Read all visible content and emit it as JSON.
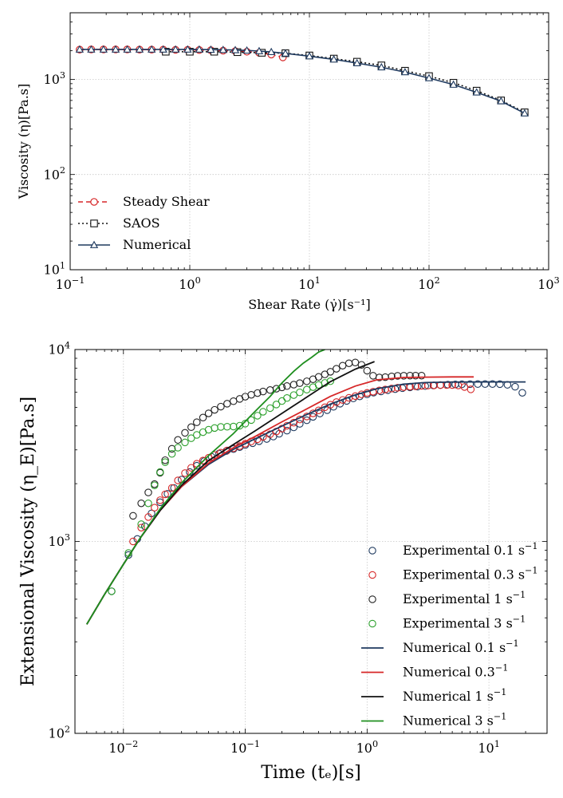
{
  "chart_data": [
    {
      "type": "line",
      "xscale": "log",
      "yscale": "log",
      "xlabel": "Shear Rate (γ̇)[s⁻¹]",
      "ylabel": "Viscosity (η)[Pa.s]",
      "xlim": [
        0.1,
        1000
      ],
      "ylim": [
        10,
        5000
      ],
      "xticks": [
        {
          "v": 0.1,
          "b": "10",
          "e": "−1"
        },
        {
          "v": 1,
          "b": "10",
          "e": "0"
        },
        {
          "v": 10,
          "b": "10",
          "e": "1"
        },
        {
          "v": 100,
          "b": "10",
          "e": "2"
        },
        {
          "v": 1000,
          "b": "10",
          "e": "3"
        }
      ],
      "yticks": [
        {
          "v": 10,
          "b": "10",
          "e": "1"
        },
        {
          "v": 100,
          "b": "10",
          "e": "2"
        },
        {
          "v": 1000,
          "b": "10",
          "e": "3"
        }
      ],
      "legend_position": "lower-left",
      "series": [
        {
          "name": "Steady Shear",
          "color": "#d62728",
          "dash": "6,4",
          "marker": "circle",
          "x": [
            0.12,
            0.15,
            0.19,
            0.24,
            0.3,
            0.38,
            0.48,
            0.6,
            0.76,
            0.96,
            1.2,
            1.5,
            1.9,
            2.4,
            3.0,
            3.8,
            4.8,
            6.0
          ],
          "y": [
            2050,
            2060,
            2060,
            2060,
            2060,
            2050,
            2050,
            2050,
            2040,
            2040,
            2030,
            2020,
            2000,
            1980,
            1950,
            1900,
            1820,
            1700
          ]
        },
        {
          "name": "SAOS",
          "color": "#111111",
          "dash": "2,3",
          "marker": "square",
          "x": [
            0.63,
            1.0,
            1.6,
            2.5,
            4.0,
            6.3,
            10,
            16,
            25,
            40,
            63,
            100,
            160,
            250,
            400,
            630
          ],
          "y": [
            1950,
            1950,
            1950,
            1930,
            1900,
            1880,
            1780,
            1650,
            1530,
            1400,
            1230,
            1080,
            920,
            760,
            600,
            450
          ]
        },
        {
          "name": "Numerical",
          "color": "#1f3a5f",
          "dash": "",
          "marker": "triangle",
          "x": [
            0.12,
            0.15,
            0.19,
            0.24,
            0.3,
            0.38,
            0.48,
            0.6,
            0.76,
            0.96,
            1.2,
            1.5,
            1.9,
            2.4,
            3.0,
            3.8,
            4.8,
            6.3,
            10,
            16,
            25,
            40,
            63,
            100,
            160,
            250,
            400,
            630
          ],
          "y": [
            2060,
            2060,
            2060,
            2060,
            2060,
            2060,
            2060,
            2060,
            2060,
            2060,
            2060,
            2050,
            2040,
            2030,
            2010,
            1980,
            1940,
            1870,
            1750,
            1620,
            1480,
            1340,
            1190,
            1030,
            880,
            730,
            590,
            440
          ]
        }
      ]
    },
    {
      "type": "scatter",
      "xscale": "log",
      "yscale": "log",
      "xlabel": "Time (tₑ)[s]",
      "ylabel": "Extensional Viscosity (η_E)[Pa.s]",
      "xlim": [
        0.004,
        30
      ],
      "ylim": [
        100,
        10000
      ],
      "xticks": [
        {
          "v": 0.01,
          "b": "10",
          "e": "−2"
        },
        {
          "v": 0.1,
          "b": "10",
          "e": "−1"
        },
        {
          "v": 1,
          "b": "10",
          "e": "0"
        },
        {
          "v": 10,
          "b": "10",
          "e": "1"
        }
      ],
      "yticks": [
        {
          "v": 100,
          "b": "10",
          "e": "2"
        },
        {
          "v": 1000,
          "b": "10",
          "e": "3"
        },
        {
          "v": 10000,
          "b": "10",
          "e": "4"
        }
      ],
      "legend_position": "lower-right",
      "series": [
        {
          "name": "Experimental 0.1",
          "sup": "−1",
          "unit": "s",
          "color": "#1f3a5f",
          "kind": "scatter",
          "x": [
            0.008,
            0.011,
            0.013,
            0.015,
            0.017,
            0.02,
            0.023,
            0.026,
            0.03,
            0.035,
            0.04,
            0.046,
            0.053,
            0.061,
            0.07,
            0.08,
            0.09,
            0.1,
            0.115,
            0.13,
            0.15,
            0.17,
            0.19,
            0.22,
            0.25,
            0.28,
            0.32,
            0.36,
            0.41,
            0.47,
            0.53,
            0.6,
            0.68,
            0.77,
            0.87,
            1.0,
            1.13,
            1.3,
            1.48,
            1.7,
            1.95,
            2.25,
            2.6,
            3.0,
            3.5,
            4.0,
            4.6,
            5.3,
            6.0,
            7.0,
            8.1,
            9.3,
            10.7,
            12.3,
            14.2,
            16.4,
            18.8
          ],
          "y": [
            550,
            850,
            1030,
            1200,
            1400,
            1600,
            1770,
            1900,
            2100,
            2300,
            2480,
            2620,
            2760,
            2870,
            2960,
            3030,
            3100,
            3180,
            3250,
            3330,
            3420,
            3520,
            3640,
            3780,
            3930,
            4100,
            4280,
            4460,
            4640,
            4830,
            5030,
            5220,
            5400,
            5560,
            5700,
            5840,
            5960,
            6050,
            6140,
            6220,
            6290,
            6350,
            6410,
            6450,
            6500,
            6530,
            6560,
            6580,
            6590,
            6600,
            6610,
            6610,
            6610,
            6600,
            6550,
            6400,
            5950
          ]
        },
        {
          "name": "Experimental 0.3",
          "sup": "−1",
          "unit": "s",
          "color": "#d62728",
          "kind": "scatter",
          "x": [
            0.012,
            0.014,
            0.016,
            0.018,
            0.02,
            0.022,
            0.025,
            0.028,
            0.032,
            0.036,
            0.04,
            0.045,
            0.05,
            0.056,
            0.063,
            0.071,
            0.08,
            0.09,
            0.1,
            0.112,
            0.126,
            0.14,
            0.16,
            0.18,
            0.2,
            0.22,
            0.25,
            0.28,
            0.32,
            0.36,
            0.4,
            0.45,
            0.5,
            0.56,
            0.63,
            0.71,
            0.8,
            0.9,
            1.0,
            1.12,
            1.26,
            1.41,
            1.59,
            1.78,
            2.0,
            2.25,
            2.5,
            2.8,
            3.16,
            3.55,
            4.0,
            4.5,
            5.0,
            5.6,
            6.3,
            7.1
          ],
          "y": [
            1000,
            1180,
            1340,
            1500,
            1640,
            1760,
            1900,
            2080,
            2270,
            2420,
            2540,
            2640,
            2730,
            2820,
            2900,
            2980,
            3060,
            3140,
            3230,
            3320,
            3410,
            3510,
            3620,
            3740,
            3870,
            4010,
            4160,
            4320,
            4480,
            4650,
            4820,
            5000,
            5160,
            5320,
            5460,
            5600,
            5720,
            5840,
            5940,
            6030,
            6120,
            6190,
            6260,
            6320,
            6370,
            6410,
            6440,
            6470,
            6490,
            6510,
            6520,
            6530,
            6530,
            6500,
            6380,
            6200
          ]
        },
        {
          "name": "Experimental 1",
          "sup": "−1",
          "unit": "s",
          "color": "#222222",
          "kind": "scatter",
          "x": [
            0.012,
            0.014,
            0.016,
            0.018,
            0.02,
            0.022,
            0.025,
            0.028,
            0.032,
            0.036,
            0.04,
            0.045,
            0.05,
            0.056,
            0.063,
            0.071,
            0.08,
            0.09,
            0.1,
            0.112,
            0.126,
            0.14,
            0.16,
            0.18,
            0.2,
            0.22,
            0.25,
            0.28,
            0.32,
            0.36,
            0.4,
            0.45,
            0.5,
            0.56,
            0.63,
            0.71,
            0.8,
            0.9,
            1.0,
            1.12,
            1.26,
            1.41,
            1.59,
            1.78,
            2.0,
            2.25,
            2.5,
            2.8
          ],
          "y": [
            1360,
            1580,
            1800,
            1990,
            2280,
            2650,
            3040,
            3380,
            3680,
            3940,
            4180,
            4420,
            4650,
            4850,
            5040,
            5220,
            5380,
            5530,
            5680,
            5810,
            5930,
            6040,
            6150,
            6250,
            6350,
            6450,
            6560,
            6680,
            6830,
            7000,
            7200,
            7420,
            7660,
            7940,
            8240,
            8480,
            8560,
            8320,
            7760,
            7300,
            7150,
            7180,
            7240,
            7290,
            7300,
            7310,
            7310,
            7310
          ]
        },
        {
          "name": "Experimental 3",
          "sup": "−1",
          "unit": "s",
          "color": "#2ca02c",
          "kind": "scatter",
          "x": [
            0.008,
            0.011,
            0.014,
            0.016,
            0.018,
            0.02,
            0.022,
            0.025,
            0.028,
            0.032,
            0.036,
            0.04,
            0.045,
            0.05,
            0.056,
            0.063,
            0.071,
            0.08,
            0.09,
            0.1,
            0.112,
            0.126,
            0.14,
            0.16,
            0.18,
            0.2,
            0.22,
            0.25,
            0.28,
            0.32,
            0.36,
            0.4,
            0.45,
            0.5
          ],
          "y": [
            550,
            870,
            1230,
            1580,
            1960,
            2300,
            2590,
            2860,
            3080,
            3280,
            3450,
            3590,
            3710,
            3820,
            3900,
            3950,
            3960,
            3970,
            4010,
            4110,
            4290,
            4520,
            4740,
            4950,
            5170,
            5390,
            5590,
            5790,
            5980,
            6180,
            6370,
            6540,
            6700,
            6840
          ]
        },
        {
          "name": "Numerical 0.1",
          "sup": "−1",
          "unit": "s",
          "color": "#1f3a5f",
          "kind": "line",
          "x": [
            0.005,
            0.007,
            0.01,
            0.014,
            0.02,
            0.03,
            0.05,
            0.08,
            0.12,
            0.2,
            0.3,
            0.5,
            0.8,
            1.2,
            2,
            3,
            5,
            8,
            12,
            20
          ],
          "y": [
            370,
            530,
            760,
            1060,
            1450,
            1930,
            2520,
            3020,
            3420,
            3990,
            4500,
            5200,
            5800,
            6250,
            6600,
            6730,
            6770,
            6780,
            6780,
            6780
          ]
        },
        {
          "name": "Numerical 0.3",
          "sup": "−1",
          "unit": "",
          "color": "#d62728",
          "kind": "line",
          "x": [
            0.005,
            0.007,
            0.01,
            0.014,
            0.02,
            0.03,
            0.05,
            0.08,
            0.12,
            0.2,
            0.3,
            0.5,
            0.8,
            1.2,
            2,
            3,
            5,
            7.5
          ],
          "y": [
            370,
            530,
            760,
            1060,
            1450,
            1930,
            2560,
            3080,
            3520,
            4200,
            4800,
            5700,
            6450,
            6950,
            7150,
            7180,
            7200,
            7200
          ]
        },
        {
          "name": "Numerical 1",
          "sup": "−1",
          "unit": "s",
          "color": "#111111",
          "kind": "line",
          "x": [
            0.005,
            0.007,
            0.01,
            0.014,
            0.02,
            0.03,
            0.05,
            0.08,
            0.12,
            0.2,
            0.3,
            0.5,
            0.8,
            1.15
          ],
          "y": [
            370,
            530,
            760,
            1060,
            1450,
            1960,
            2640,
            3200,
            3760,
            4650,
            5500,
            6800,
            7900,
            8650
          ]
        },
        {
          "name": "Numerical 3",
          "sup": "−1",
          "unit": "s",
          "color": "#1f8f1f",
          "kind": "line",
          "x": [
            0.005,
            0.007,
            0.01,
            0.014,
            0.02,
            0.03,
            0.05,
            0.08,
            0.12,
            0.16,
            0.2,
            0.25,
            0.3,
            0.35,
            0.4,
            0.45
          ],
          "y": [
            370,
            530,
            760,
            1060,
            1480,
            2020,
            2800,
            3650,
            4750,
            5700,
            6700,
            7700,
            8500,
            9100,
            9700,
            10000
          ]
        }
      ]
    }
  ]
}
